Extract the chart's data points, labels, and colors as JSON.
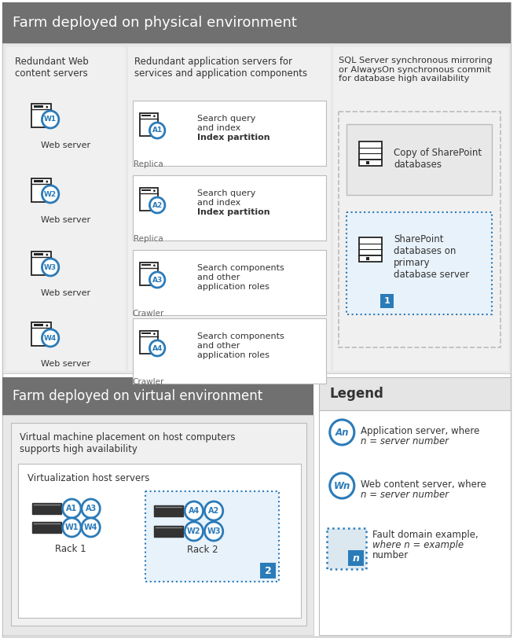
{
  "title_physical": "Farm deployed on physical environment",
  "title_virtual": "Farm deployed on virtual environment",
  "title_bg": "#707070",
  "blue": "#2b7bb9",
  "blue_light_fill": "#e8f2fb",
  "gray_section": "#e8e8e8",
  "gray_inner": "#f0f0f0",
  "white": "#ffffff",
  "text_dark": "#333333",
  "text_gray": "#666666",
  "border_gray": "#bbbbbb",
  "border_dashed_blue": "#2b7bb9",
  "col1_title": "Redundant Web\ncontent servers",
  "col2_title": "Redundant application servers for\nservices and application components",
  "col3_title": "SQL Server synchronous mirroring\nor AlwaysOn synchronous commit\nfor database high availability",
  "web_servers": [
    "W1",
    "W2",
    "W3",
    "W4"
  ],
  "app_servers": [
    {
      "id": "A1",
      "role": "Replica",
      "line1": "Search query",
      "line2": "and index",
      "line3": "Index partition",
      "bold3": true
    },
    {
      "id": "A2",
      "role": "Replica",
      "line1": "Search query",
      "line2": "and index",
      "line3": "Index partition",
      "bold3": true
    },
    {
      "id": "A3",
      "role": "Crawler",
      "line1": "Search components",
      "line2": "and other",
      "line3": "application roles",
      "bold3": false
    },
    {
      "id": "A4",
      "role": "Crawler",
      "line1": "Search components",
      "line2": "and other",
      "line3": "application roles",
      "bold3": false
    }
  ]
}
